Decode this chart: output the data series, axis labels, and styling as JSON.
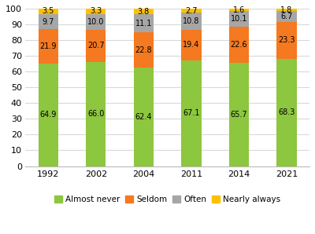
{
  "years": [
    "1992",
    "2002",
    "2004",
    "2011",
    "2014",
    "2021"
  ],
  "almost_never": [
    64.9,
    66.0,
    62.4,
    67.1,
    65.7,
    68.3
  ],
  "seldom": [
    21.9,
    20.7,
    22.8,
    19.4,
    22.6,
    23.3
  ],
  "often": [
    9.7,
    10.0,
    11.1,
    10.8,
    10.1,
    6.7
  ],
  "nearly_always": [
    3.5,
    3.3,
    3.8,
    2.7,
    1.6,
    1.8
  ],
  "colors": {
    "almost_never": "#8dc63f",
    "seldom": "#f47920",
    "often": "#a6a6a6",
    "nearly_always": "#ffc000"
  },
  "legend_labels": [
    "Almost never",
    "Seldom",
    "Often",
    "Nearly always"
  ],
  "ylim": [
    0,
    100
  ],
  "yticks": [
    0,
    10,
    20,
    30,
    40,
    50,
    60,
    70,
    80,
    90,
    100
  ],
  "bar_width": 0.42,
  "label_fontsize": 7.0,
  "tick_fontsize": 8.0,
  "legend_fontsize": 7.5,
  "background_color": "#ffffff",
  "figsize": [
    4.0,
    2.98
  ],
  "dpi": 100
}
